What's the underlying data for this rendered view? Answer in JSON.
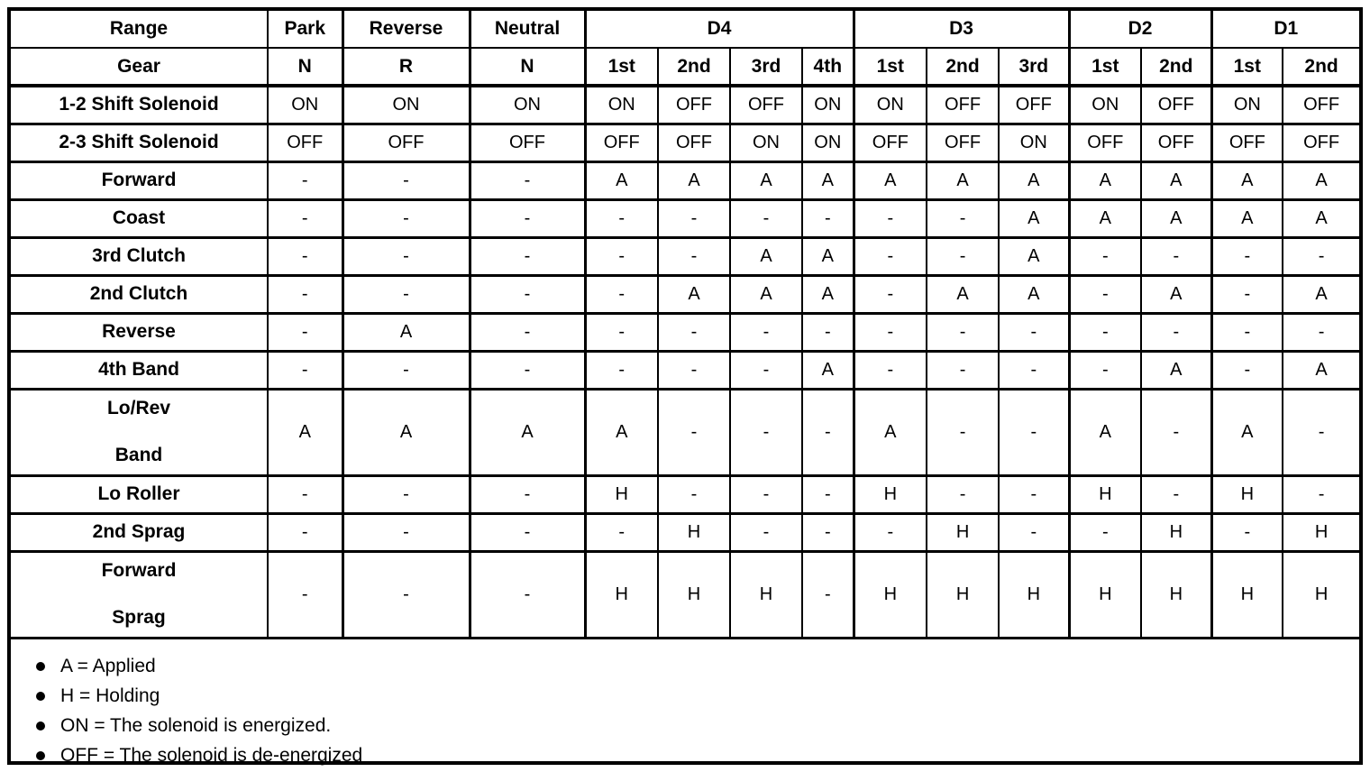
{
  "colors": {
    "ink": "#000000",
    "paper": "#ffffff"
  },
  "table": {
    "corner_range_label": "Range",
    "corner_gear_label": "Gear",
    "range_groups": [
      {
        "label": "Park",
        "span": 1
      },
      {
        "label": "Reverse",
        "span": 1
      },
      {
        "label": "Neutral",
        "span": 1
      },
      {
        "label": "D4",
        "span": 4
      },
      {
        "label": "D3",
        "span": 3
      },
      {
        "label": "D2",
        "span": 2
      },
      {
        "label": "D1",
        "span": 2
      }
    ],
    "gear_row": [
      "N",
      "R",
      "N",
      "1st",
      "2nd",
      "3rd",
      "4th",
      "1st",
      "2nd",
      "3rd",
      "1st",
      "2nd",
      "1st",
      "2nd"
    ],
    "rows": [
      {
        "label": "1-2 Shift Solenoid",
        "values": [
          "ON",
          "ON",
          "ON",
          "ON",
          "OFF",
          "OFF",
          "ON",
          "ON",
          "OFF",
          "OFF",
          "ON",
          "OFF",
          "ON",
          "OFF"
        ]
      },
      {
        "label": "2-3 Shift Solenoid",
        "values": [
          "OFF",
          "OFF",
          "OFF",
          "OFF",
          "OFF",
          "ON",
          "ON",
          "OFF",
          "OFF",
          "ON",
          "OFF",
          "OFF",
          "OFF",
          "OFF"
        ]
      },
      {
        "label": "Forward",
        "values": [
          "-",
          "-",
          "-",
          "A",
          "A",
          "A",
          "A",
          "A",
          "A",
          "A",
          "A",
          "A",
          "A",
          "A"
        ]
      },
      {
        "label": "Coast",
        "values": [
          "-",
          "-",
          "-",
          "-",
          "-",
          "-",
          "-",
          "-",
          "-",
          "A",
          "A",
          "A",
          "A",
          "A"
        ]
      },
      {
        "label": "3rd Clutch",
        "values": [
          "-",
          "-",
          "-",
          "-",
          "-",
          "A",
          "A",
          "-",
          "-",
          "A",
          "-",
          "-",
          "-",
          "-"
        ]
      },
      {
        "label": "2nd Clutch",
        "values": [
          "-",
          "-",
          "-",
          "-",
          "A",
          "A",
          "A",
          "-",
          "A",
          "A",
          "-",
          "A",
          "-",
          "A"
        ]
      },
      {
        "label": "Reverse",
        "values": [
          "-",
          "A",
          "-",
          "-",
          "-",
          "-",
          "-",
          "-",
          "-",
          "-",
          "-",
          "-",
          "-",
          "-"
        ]
      },
      {
        "label": "4th Band",
        "values": [
          "-",
          "-",
          "-",
          "-",
          "-",
          "-",
          "A",
          "-",
          "-",
          "-",
          "-",
          "A",
          "-",
          "A"
        ]
      },
      {
        "label": "Lo/Rev Band",
        "label_lines": [
          "Lo/Rev",
          "Band"
        ],
        "tall": true,
        "values": [
          "A",
          "A",
          "A",
          "A",
          "-",
          "-",
          "-",
          "A",
          "-",
          "-",
          "A",
          "-",
          "A",
          "-"
        ]
      },
      {
        "label": "Lo Roller",
        "values": [
          "-",
          "-",
          "-",
          "H",
          "-",
          "-",
          "-",
          "H",
          "-",
          "-",
          "H",
          "-",
          "H",
          "-"
        ]
      },
      {
        "label": "2nd Sprag",
        "values": [
          "-",
          "-",
          "-",
          "-",
          "H",
          "-",
          "-",
          "-",
          "H",
          "-",
          "-",
          "H",
          "-",
          "H"
        ]
      },
      {
        "label": "Forward Sprag",
        "label_lines": [
          "Forward",
          "Sprag"
        ],
        "tall": true,
        "values": [
          "-",
          "-",
          "-",
          "H",
          "H",
          "H",
          "-",
          "H",
          "H",
          "H",
          "H",
          "H",
          "H",
          "H"
        ]
      }
    ],
    "legend": [
      "A = Applied",
      "H = Holding",
      "ON = The solenoid is energized.",
      "OFF = The solenoid is de-energized"
    ]
  }
}
